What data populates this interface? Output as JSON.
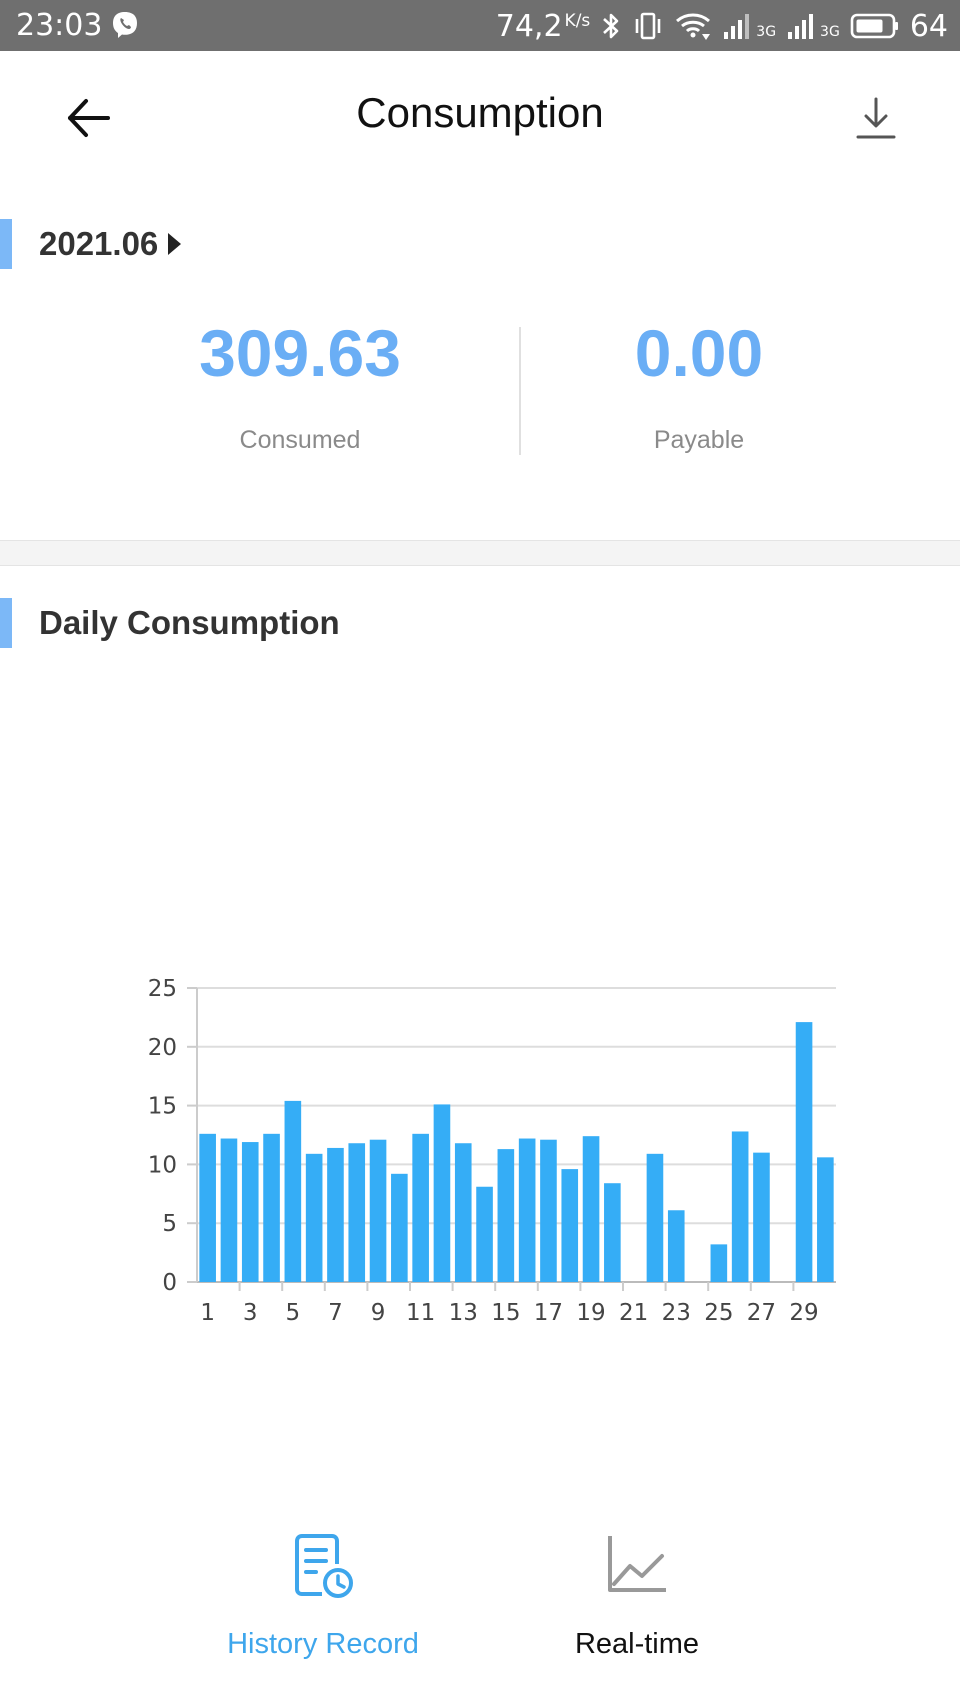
{
  "status_bar": {
    "time": "23:03",
    "net_speed": "74,2",
    "net_speed_unit": "K/s",
    "network_1": "3G",
    "network_2": "3G",
    "battery": "64",
    "icons": [
      "viber-icon",
      "bluetooth-icon",
      "vibrate-icon",
      "wifi-icon",
      "signal-icon",
      "signal-icon",
      "battery-icon"
    ]
  },
  "header": {
    "title": "Consumption",
    "back_icon": "arrow-left-icon",
    "download_icon": "download-icon"
  },
  "month_section": {
    "month": "2021.06"
  },
  "summary": {
    "consumed_value": "309.63",
    "consumed_label": "Consumed",
    "payable_value": "0.00",
    "payable_label": "Payable"
  },
  "daily_section": {
    "title": "Daily Consumption"
  },
  "colors": {
    "accent": "#6aaef5",
    "bar": "#35adf6",
    "marker": "#7cb8f7",
    "nav_active": "#3ea6ec",
    "status_bar": "#6f6f6f"
  },
  "chart_data": {
    "type": "bar",
    "title": "",
    "xlabel": "",
    "ylabel": "",
    "ylim": [
      0,
      25
    ],
    "yticks": [
      0,
      5,
      10,
      15,
      20,
      25
    ],
    "grid": true,
    "categories": [
      "1",
      "2",
      "3",
      "4",
      "5",
      "6",
      "7",
      "8",
      "9",
      "10",
      "11",
      "12",
      "13",
      "14",
      "15",
      "16",
      "17",
      "18",
      "19",
      "20",
      "21",
      "22",
      "23",
      "24",
      "25",
      "26",
      "27",
      "28",
      "29",
      "30"
    ],
    "x_tick_labels": [
      "1",
      "3",
      "5",
      "7",
      "9",
      "11",
      "13",
      "15",
      "17",
      "19",
      "21",
      "23",
      "25",
      "27",
      "29"
    ],
    "values": [
      12.6,
      12.2,
      11.9,
      12.6,
      15.4,
      10.9,
      11.4,
      11.8,
      12.1,
      9.2,
      12.6,
      15.1,
      11.8,
      8.1,
      11.3,
      12.2,
      12.1,
      9.6,
      12.4,
      8.4,
      0,
      10.9,
      6.1,
      0,
      3.2,
      12.8,
      11.0,
      0,
      22.1,
      10.6
    ],
    "legend": "none"
  },
  "bottom_nav": {
    "items": [
      {
        "label": "History Record",
        "icon": "history-record-icon",
        "active": true
      },
      {
        "label": "Real-time",
        "icon": "line-chart-icon",
        "active": false
      }
    ]
  }
}
